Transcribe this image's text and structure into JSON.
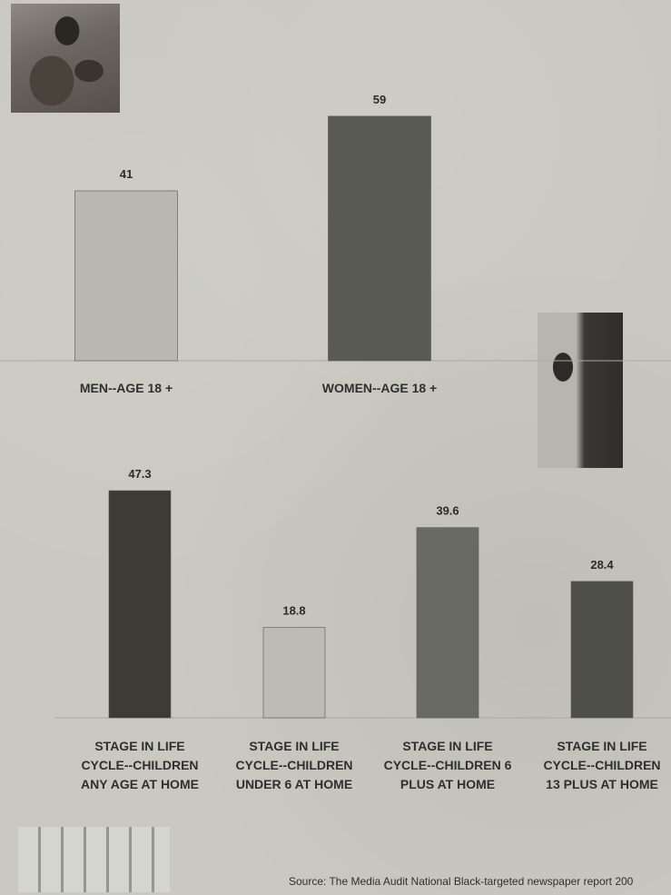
{
  "chart_data": [
    {
      "type": "bar",
      "categories": [
        "MEN--AGE 18 +",
        "WOMEN--AGE 18 +"
      ],
      "values": [
        41,
        59
      ],
      "colors": [
        "#b9b9b1",
        "#5a5a55"
      ]
    },
    {
      "type": "bar",
      "categories": [
        [
          "STAGE IN LIFE",
          "CYCLE--CHILDREN",
          "ANY AGE AT HOME"
        ],
        [
          "STAGE IN LIFE",
          "CYCLE--CHILDREN",
          "UNDER 6 AT HOME"
        ],
        [
          "STAGE IN LIFE",
          "CYCLE--CHILDREN 6",
          "PLUS AT HOME"
        ],
        [
          "STAGE IN LIFE",
          "CYCLE--CHILDREN",
          "13 PLUS AT HOME"
        ]
      ],
      "values": [
        47.3,
        18.8,
        39.6,
        28.4
      ],
      "colors": [
        "#3e3b36",
        "#bcbcb4",
        "#6a6a64",
        "#4f4f4a"
      ]
    }
  ],
  "source": "Source: The Media Audit National Black-targeted newspaper report 200"
}
